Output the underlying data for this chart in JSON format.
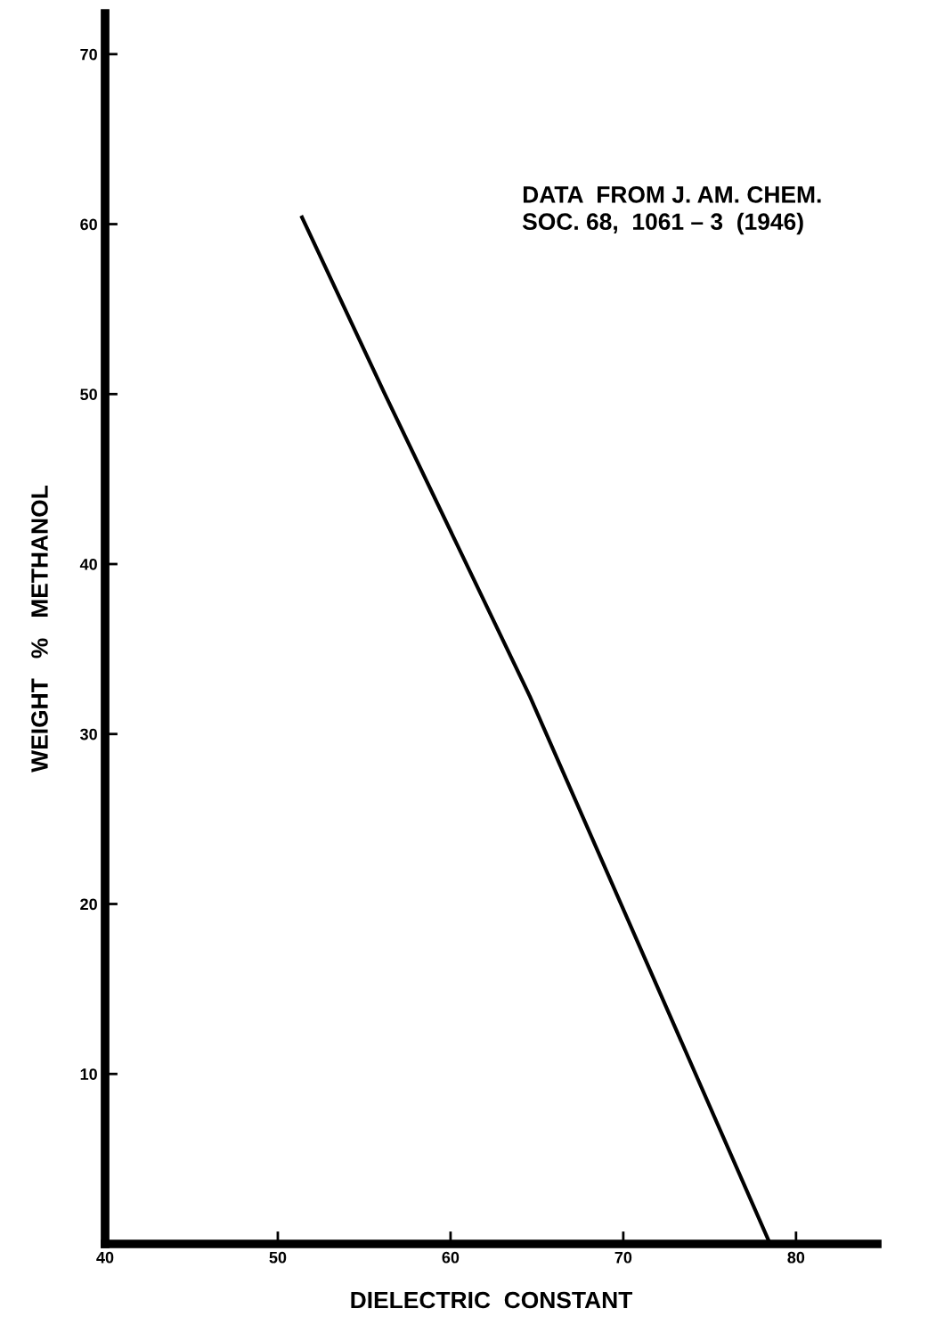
{
  "chart_data": {
    "type": "line",
    "xlabel": "DIELECTRIC  CONSTANT",
    "ylabel": "WEIGHT   %   METHANOL",
    "annotations": [
      "DATA  FROM J. AM. CHEM.\nSOC. 68,  1061 – 3  (1946)"
    ],
    "series": [
      {
        "color": "#000000",
        "x": [
          51.4,
          56.2,
          64.6,
          78.5
        ],
        "values": [
          60.4,
          50.0,
          32.2,
          0
        ]
      }
    ],
    "xlim": [
      40,
      84.7
    ],
    "ylim": [
      0,
      72.4
    ],
    "xticks": [
      40,
      50,
      60,
      70,
      80
    ],
    "yticks": [
      10,
      20,
      30,
      40,
      50,
      60,
      70
    ],
    "grid": false,
    "legend": false,
    "marker": "none",
    "line_style": "solid"
  }
}
